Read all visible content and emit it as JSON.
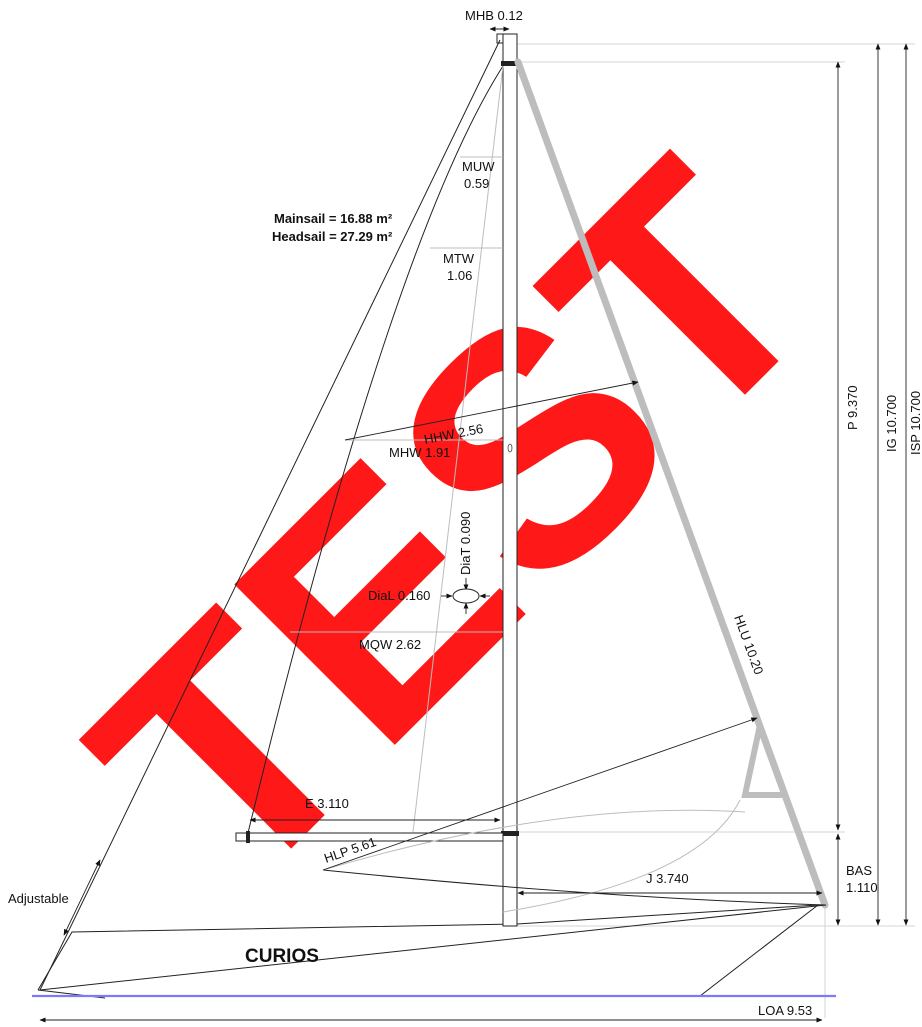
{
  "boat_name": "CURIOS",
  "watermark": "TEST",
  "areas": {
    "mainsail": "Mainsail = 16.88 m²",
    "headsail": "Headsail = 27.29 m²"
  },
  "labels": {
    "mhb": "MHB 0.12",
    "muw_name": "MUW",
    "muw_value": "0.59",
    "mtw_name": "MTW",
    "mtw_value": "1.06",
    "hhw": "HHW 2.56",
    "mhw": "MHW 1.91",
    "diat": "DiaT 0.090",
    "dial": "DiaL 0.160",
    "mqw": "MQW 2.62",
    "hlu": "HLU 10.20",
    "e": "E 3.110",
    "hlp": "HLP 5.61",
    "j": "J 3.740",
    "bas_name": "BAS",
    "bas_value": "1.110",
    "p": "P 9.370",
    "ig": "IG 10.700",
    "isp": "ISP 10.700",
    "loa": "LOA 9.53",
    "adjustable": "Adjustable"
  },
  "colors": {
    "watermark": "#ff0000",
    "waterline": "#7b7bff",
    "forestay": "#bdbdbd"
  }
}
